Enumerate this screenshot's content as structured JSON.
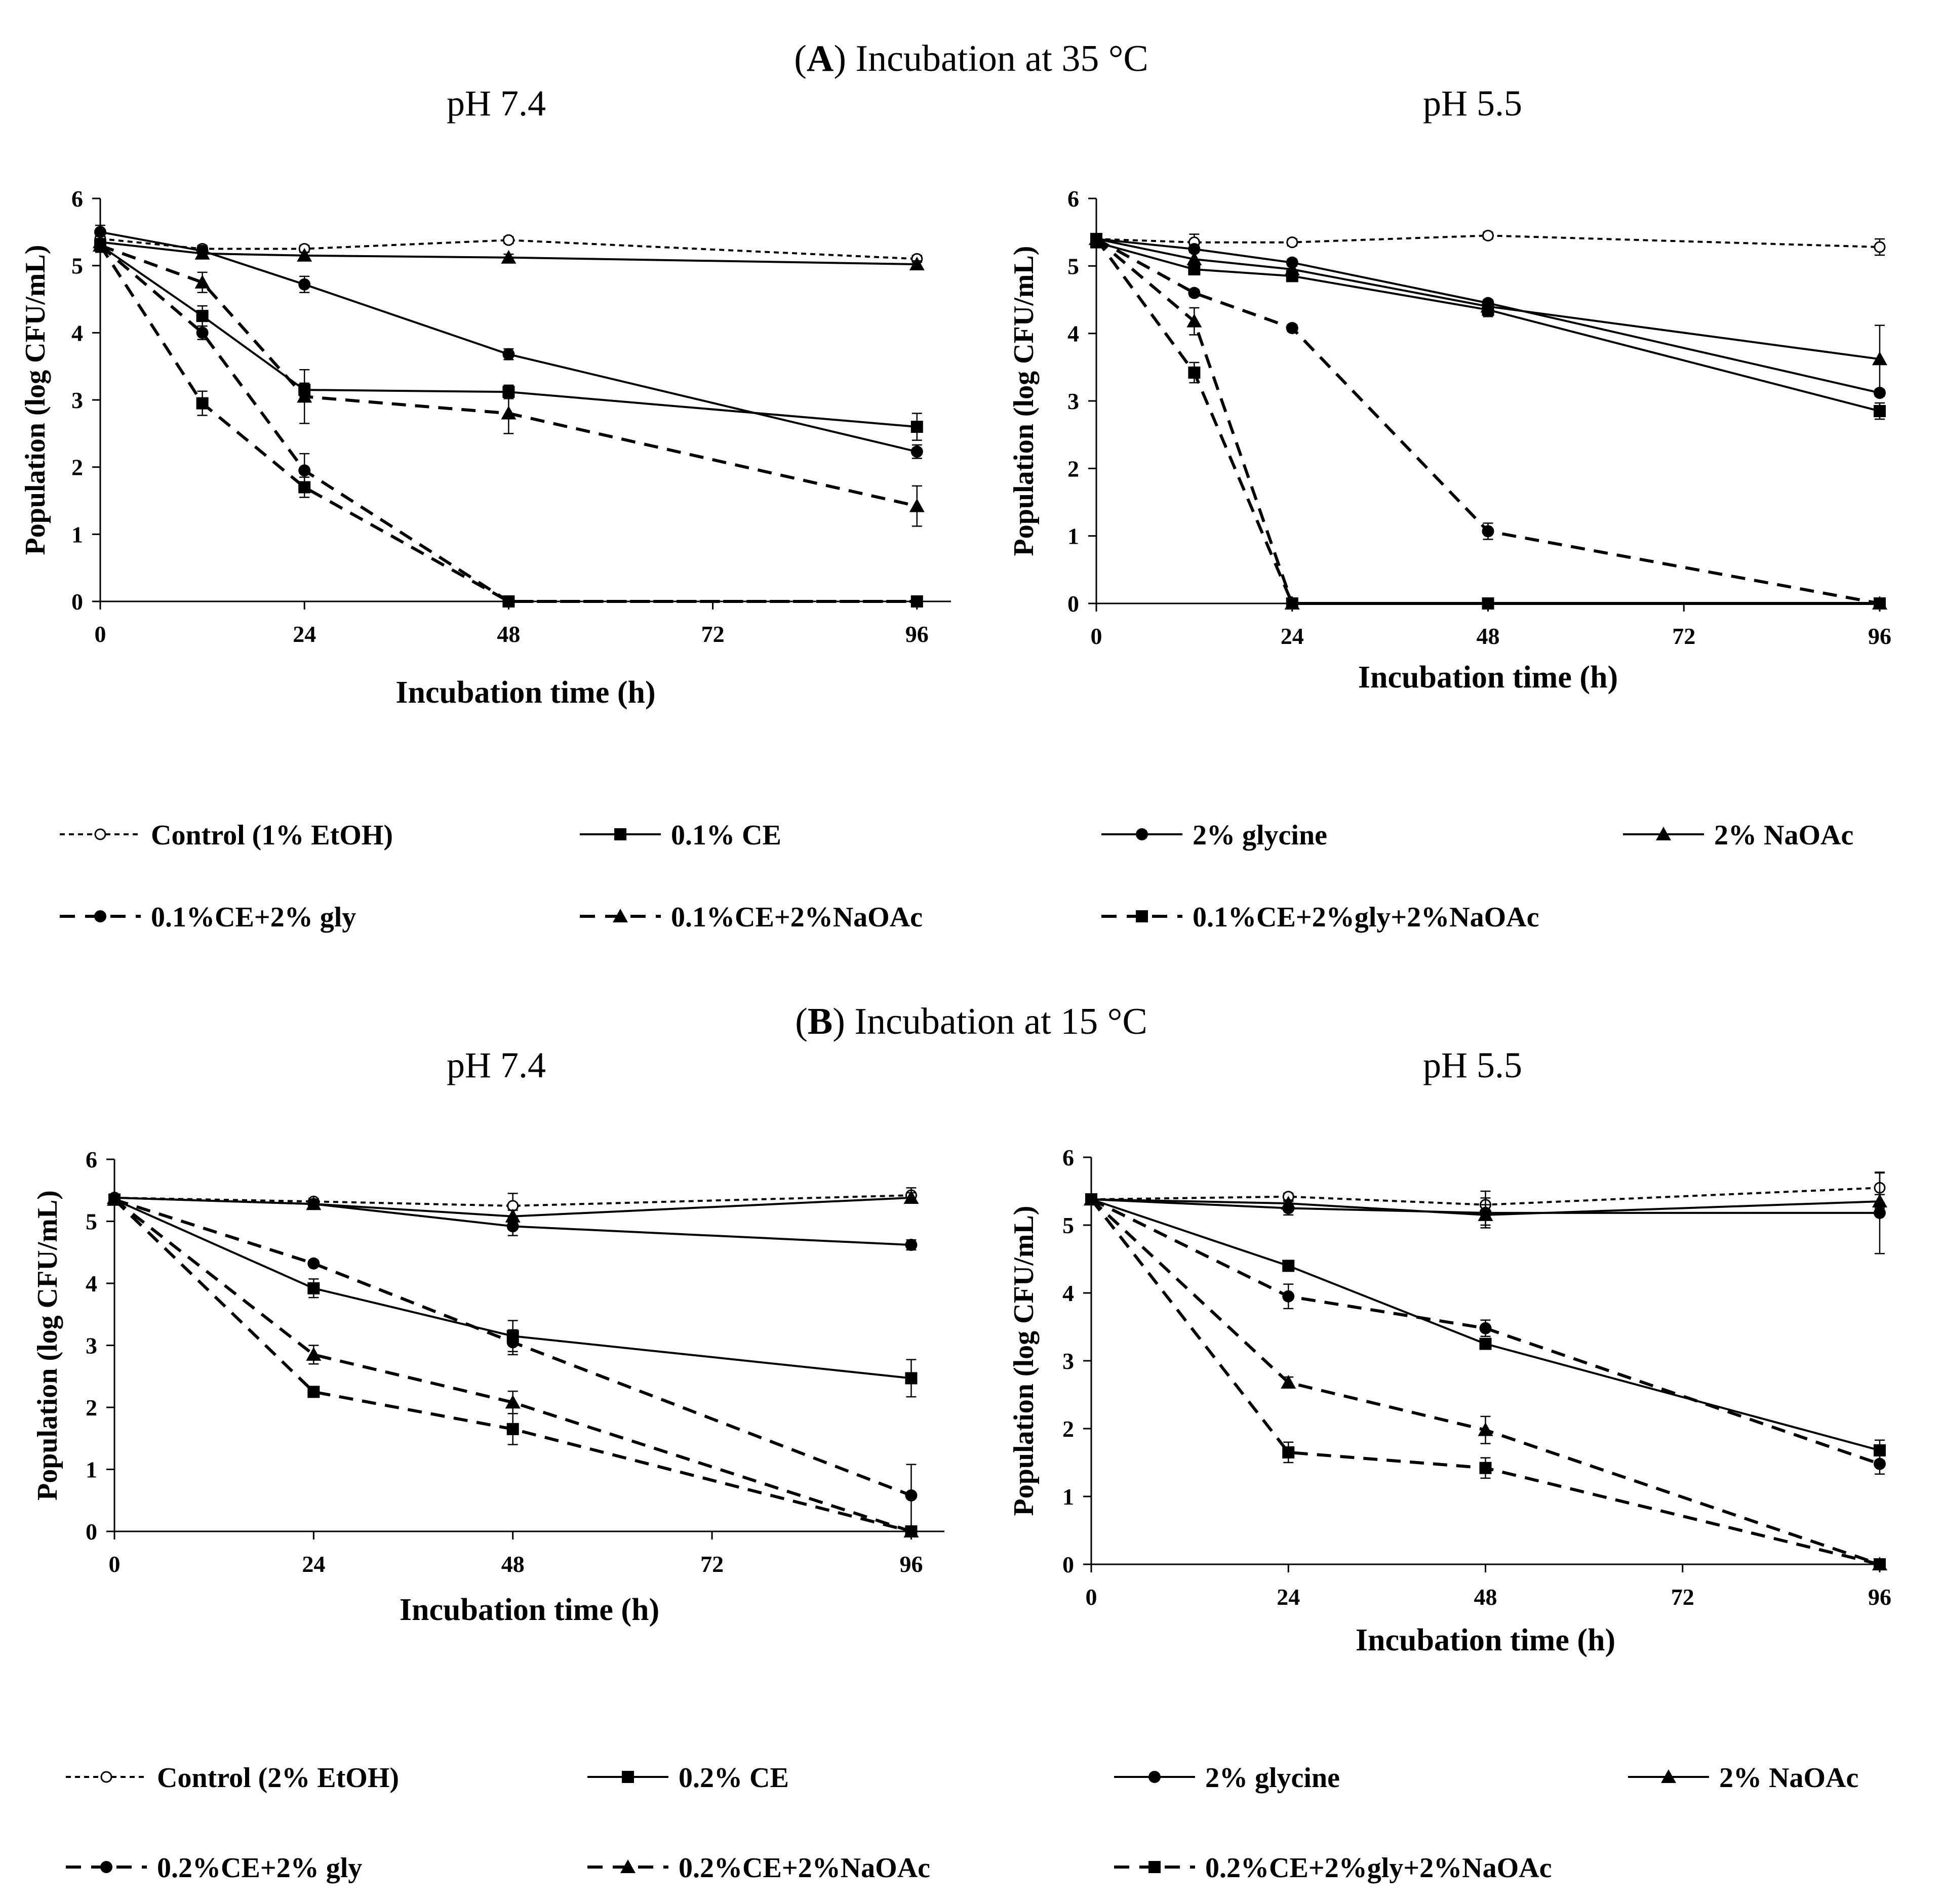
{
  "sections": [
    {
      "title_letter": "A",
      "title_text": "Incubation at 35 °C",
      "legend": [
        {
          "label": "Control (1% EtOH)",
          "line": "dotted",
          "marker": "circle-open"
        },
        {
          "label": "0.1% CE",
          "line": "solid",
          "marker": "square"
        },
        {
          "label": "2% glycine",
          "line": "solid",
          "marker": "circle"
        },
        {
          "label": "2% NaOAc",
          "line": "solid",
          "marker": "triangle"
        },
        {
          "label": "0.1%CE+2% gly",
          "line": "dashed",
          "marker": "circle"
        },
        {
          "label": "0.1%CE+2%NaOAc",
          "line": "dashed",
          "marker": "triangle"
        },
        {
          "label": "0.1%CE+2%gly+2%NaOAc",
          "line": "dashed",
          "marker": "square"
        }
      ]
    },
    {
      "title_letter": "B",
      "title_text": "Incubation at 15 °C",
      "legend": [
        {
          "label": "Control (2% EtOH)",
          "line": "dotted",
          "marker": "circle-open"
        },
        {
          "label": "0.2% CE",
          "line": "solid",
          "marker": "square"
        },
        {
          "label": "2% glycine",
          "line": "solid",
          "marker": "circle"
        },
        {
          "label": "2% NaOAc",
          "line": "solid",
          "marker": "triangle"
        },
        {
          "label": "0.2%CE+2% gly",
          "line": "dashed",
          "marker": "circle"
        },
        {
          "label": "0.2%CE+2%NaOAc",
          "line": "dashed",
          "marker": "triangle"
        },
        {
          "label": "0.2%CE+2%gly+2%NaOAc",
          "line": "dashed",
          "marker": "square"
        }
      ]
    }
  ],
  "chart_data": [
    {
      "type": "line",
      "title": "pH 7.4",
      "xlabel": "Incubation time (h)",
      "ylabel": "Population (log CFU/mL)",
      "xticks": [
        0,
        24,
        48,
        72,
        96
      ],
      "yticks": [
        0,
        1,
        2,
        3,
        4,
        5,
        6
      ],
      "xlim": [
        0,
        100
      ],
      "ylim": [
        0,
        6
      ],
      "series": [
        {
          "name": "Control (1% EtOH)",
          "x": [
            0,
            12,
            24,
            48,
            96
          ],
          "values": [
            5.4,
            5.25,
            5.25,
            5.38,
            5.1
          ],
          "err": [
            0.05,
            0.05,
            0.05,
            0.05,
            0.05
          ]
        },
        {
          "name": "0.1% CE",
          "x": [
            0,
            12,
            24,
            48,
            96
          ],
          "values": [
            5.3,
            4.25,
            3.15,
            3.12,
            2.6
          ],
          "err": [
            0.1,
            0.15,
            0.1,
            0.1,
            0.2
          ]
        },
        {
          "name": "2% glycine",
          "x": [
            0,
            12,
            24,
            48,
            96
          ],
          "values": [
            5.5,
            5.22,
            4.72,
            3.68,
            2.23
          ],
          "err": [
            0.1,
            0.05,
            0.12,
            0.08,
            0.1
          ]
        },
        {
          "name": "2% NaOAc",
          "x": [
            0,
            12,
            24,
            48,
            96
          ],
          "values": [
            5.35,
            5.18,
            5.15,
            5.12,
            5.02
          ],
          "err": [
            0.05,
            0.05,
            0.05,
            0.05,
            0.05
          ]
        },
        {
          "name": "0.1%CE+2% gly",
          "x": [
            0,
            12,
            24,
            48,
            96
          ],
          "values": [
            5.3,
            4.0,
            1.95,
            0,
            0
          ],
          "err": [
            0.1,
            0.1,
            0.25,
            0,
            0
          ]
        },
        {
          "name": "0.1%CE+2%NaOAc",
          "x": [
            0,
            12,
            24,
            48,
            96
          ],
          "values": [
            5.3,
            4.75,
            3.05,
            2.8,
            1.42
          ],
          "err": [
            0.1,
            0.15,
            0.4,
            0.3,
            0.3
          ]
        },
        {
          "name": "0.1%CE+2%gly+2%NaOAc",
          "x": [
            0,
            12,
            24,
            48,
            96
          ],
          "values": [
            5.3,
            2.95,
            1.7,
            0,
            0
          ],
          "err": [
            0.1,
            0.18,
            0.15,
            0,
            0
          ]
        }
      ]
    },
    {
      "type": "line",
      "title": "pH 5.5",
      "xlabel": "Incubation time (h)",
      "ylabel": "Population (log CFU/mL)",
      "xticks": [
        0,
        24,
        48,
        72,
        96
      ],
      "yticks": [
        0,
        1,
        2,
        3,
        4,
        5,
        6
      ],
      "xlim": [
        0,
        96
      ],
      "ylim": [
        0,
        6
      ],
      "series": [
        {
          "name": "Control (1% EtOH)",
          "x": [
            0,
            12,
            24,
            48,
            96
          ],
          "values": [
            5.4,
            5.35,
            5.35,
            5.45,
            5.28
          ],
          "err": [
            0.05,
            0.12,
            0.05,
            0.05,
            0.12
          ]
        },
        {
          "name": "0.1% CE",
          "x": [
            0,
            12,
            24,
            48,
            96
          ],
          "values": [
            5.35,
            4.95,
            4.85,
            4.35,
            2.85
          ],
          "err": [
            0.05,
            0.08,
            0.08,
            0.1,
            0.12
          ]
        },
        {
          "name": "2% glycine",
          "x": [
            0,
            12,
            24,
            48,
            96
          ],
          "values": [
            5.4,
            5.25,
            5.05,
            4.45,
            3.12
          ],
          "err": [
            0.05,
            0.05,
            0.05,
            0.05,
            0.05
          ]
        },
        {
          "name": "2% NaOAc",
          "x": [
            0,
            12,
            24,
            48,
            96
          ],
          "values": [
            5.4,
            5.1,
            4.95,
            4.4,
            3.62
          ],
          "err": [
            0.05,
            0.1,
            0.1,
            0.08,
            0.5
          ]
        },
        {
          "name": "0.1%CE+2% gly",
          "x": [
            0,
            12,
            24,
            48,
            96
          ],
          "values": [
            5.4,
            4.6,
            4.08,
            1.07,
            0
          ],
          "err": [
            0.05,
            0.05,
            0.05,
            0.12,
            0
          ]
        },
        {
          "name": "0.1%CE+2%NaOAc",
          "x": [
            0,
            12,
            24,
            96
          ],
          "values": [
            5.4,
            4.18,
            0,
            0
          ],
          "err": [
            0.05,
            0.2,
            0,
            0
          ]
        },
        {
          "name": "0.1%CE+2%gly+2%NaOAc",
          "x": [
            0,
            12,
            24,
            48,
            96
          ],
          "values": [
            5.4,
            3.42,
            0,
            0,
            0
          ],
          "err": [
            0.05,
            0.15,
            0,
            0,
            0
          ]
        }
      ]
    },
    {
      "type": "line",
      "title": "pH 7.4",
      "xlabel": "Incubation time (h)",
      "ylabel": "Population (log CFU/mL)",
      "xticks": [
        0,
        24,
        48,
        72,
        96
      ],
      "yticks": [
        0,
        1,
        2,
        3,
        4,
        5,
        6
      ],
      "xlim": [
        0,
        100
      ],
      "ylim": [
        0,
        6
      ],
      "series": [
        {
          "name": "Control (2% EtOH)",
          "x": [
            0,
            24,
            48,
            96
          ],
          "values": [
            5.38,
            5.32,
            5.25,
            5.42
          ],
          "err": [
            0.05,
            0.05,
            0.2,
            0.12
          ]
        },
        {
          "name": "0.2% CE",
          "x": [
            0,
            24,
            48,
            96
          ],
          "values": [
            5.35,
            3.92,
            3.15,
            2.47
          ],
          "err": [
            0.05,
            0.15,
            0.25,
            0.3
          ]
        },
        {
          "name": "2% glycine",
          "x": [
            0,
            24,
            48,
            96
          ],
          "values": [
            5.38,
            5.28,
            4.92,
            4.62
          ],
          "err": [
            0.05,
            0.05,
            0.15,
            0.08
          ]
        },
        {
          "name": "2% NaOAc",
          "x": [
            0,
            24,
            48,
            96
          ],
          "values": [
            5.38,
            5.28,
            5.08,
            5.38
          ],
          "err": [
            0.05,
            0.05,
            0.1,
            0.08
          ]
        },
        {
          "name": "0.2%CE+2% gly",
          "x": [
            0,
            24,
            48,
            96
          ],
          "values": [
            5.35,
            4.32,
            3.05,
            0.58
          ],
          "err": [
            0.05,
            0.05,
            0.2,
            0.5
          ]
        },
        {
          "name": "0.2%CE+2%NaOAc",
          "x": [
            0,
            24,
            48,
            96
          ],
          "values": [
            5.35,
            2.85,
            2.08,
            0
          ],
          "err": [
            0.05,
            0.15,
            0.18,
            0
          ]
        },
        {
          "name": "0.2%CE+2%gly+2%NaOAc",
          "x": [
            0,
            24,
            48,
            96
          ],
          "values": [
            5.35,
            2.25,
            1.65,
            0
          ],
          "err": [
            0.05,
            0.05,
            0.25,
            0
          ]
        }
      ]
    },
    {
      "type": "line",
      "title": "pH 5.5",
      "xlabel": "Incubation time (h)",
      "ylabel": "Population (log CFU/mL)",
      "xticks": [
        0,
        24,
        48,
        72,
        96
      ],
      "yticks": [
        0,
        1,
        2,
        3,
        4,
        5,
        6
      ],
      "xlim": [
        0,
        96
      ],
      "ylim": [
        0,
        6
      ],
      "series": [
        {
          "name": "Control (2% EtOH)",
          "x": [
            0,
            24,
            48,
            96
          ],
          "values": [
            5.38,
            5.42,
            5.3,
            5.55
          ],
          "err": [
            0.05,
            0.05,
            0.2,
            0.22
          ]
        },
        {
          "name": "0.2% CE",
          "x": [
            0,
            24,
            48,
            96
          ],
          "values": [
            5.38,
            4.4,
            3.25,
            1.68
          ],
          "err": [
            0.05,
            0.05,
            0.08,
            0.15
          ]
        },
        {
          "name": "2% glycine",
          "x": [
            0,
            24,
            48,
            96
          ],
          "values": [
            5.38,
            5.25,
            5.18,
            5.18
          ],
          "err": [
            0.05,
            0.1,
            0.22,
            0.6
          ]
        },
        {
          "name": "2% NaOAc",
          "x": [
            0,
            24,
            48,
            96
          ],
          "values": [
            5.38,
            5.32,
            5.15,
            5.35
          ],
          "err": [
            0.05,
            0.05,
            0.15,
            0.1
          ]
        },
        {
          "name": "0.2%CE+2% gly",
          "x": [
            0,
            24,
            48,
            96
          ],
          "values": [
            5.38,
            3.95,
            3.48,
            1.48
          ],
          "err": [
            0.05,
            0.18,
            0.12,
            0.15
          ]
        },
        {
          "name": "0.2%CE+2%NaOAc",
          "x": [
            0,
            24,
            48,
            96
          ],
          "values": [
            5.38,
            2.68,
            1.98,
            0
          ],
          "err": [
            0.05,
            0.08,
            0.2,
            0
          ]
        },
        {
          "name": "0.2%CE+2%gly+2%NaOAc",
          "x": [
            0,
            24,
            48,
            96
          ],
          "values": [
            5.38,
            1.65,
            1.42,
            0
          ],
          "err": [
            0.05,
            0.15,
            0.15,
            0
          ]
        }
      ]
    }
  ]
}
